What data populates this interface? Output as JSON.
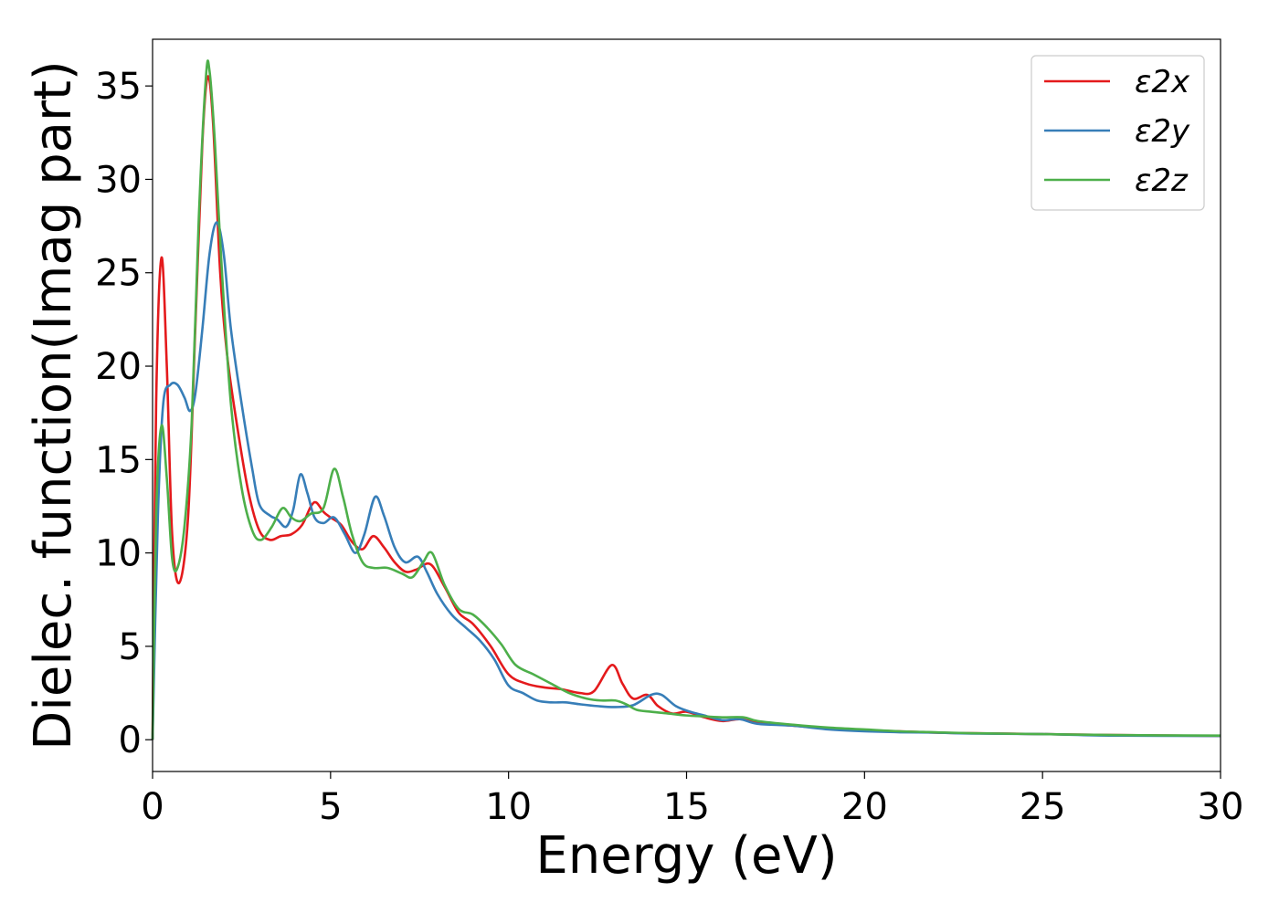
{
  "chart_data": {
    "type": "line",
    "title": "",
    "xlabel": "Energy (eV)",
    "ylabel": "Dielec. function(Imag part)",
    "xlim": [
      0,
      30
    ],
    "ylim": [
      -1.7,
      37.5
    ],
    "xticks": [
      0,
      5,
      10,
      15,
      20,
      25,
      30
    ],
    "yticks": [
      0,
      5,
      10,
      15,
      20,
      25,
      30,
      35
    ],
    "grid": false,
    "legend_position": "top-right",
    "series": [
      {
        "name": "ε2x",
        "color": "#e41a1c",
        "points": [
          [
            0,
            0
          ],
          [
            0.1,
            18
          ],
          [
            0.25,
            25.8
          ],
          [
            0.4,
            20
          ],
          [
            0.55,
            11
          ],
          [
            0.75,
            8.4
          ],
          [
            1.0,
            12
          ],
          [
            1.2,
            22
          ],
          [
            1.4,
            32
          ],
          [
            1.55,
            35.5
          ],
          [
            1.7,
            33
          ],
          [
            1.9,
            25
          ],
          [
            2.1,
            20.5
          ],
          [
            2.4,
            16.5
          ],
          [
            2.7,
            13.2
          ],
          [
            3.0,
            11.2
          ],
          [
            3.3,
            10.7
          ],
          [
            3.6,
            10.9
          ],
          [
            3.9,
            11.0
          ],
          [
            4.2,
            11.5
          ],
          [
            4.45,
            12.5
          ],
          [
            4.6,
            12.7
          ],
          [
            4.8,
            12.2
          ],
          [
            5.0,
            11.9
          ],
          [
            5.3,
            11.5
          ],
          [
            5.6,
            10.6
          ],
          [
            5.9,
            10.2
          ],
          [
            6.2,
            10.9
          ],
          [
            6.5,
            10.3
          ],
          [
            6.8,
            9.5
          ],
          [
            7.1,
            9.0
          ],
          [
            7.4,
            9.1
          ],
          [
            7.8,
            9.4
          ],
          [
            8.2,
            8.2
          ],
          [
            8.6,
            6.8
          ],
          [
            9.0,
            6.2
          ],
          [
            9.5,
            5.0
          ],
          [
            10.0,
            3.5
          ],
          [
            10.5,
            3.0
          ],
          [
            11.0,
            2.8
          ],
          [
            11.5,
            2.7
          ],
          [
            12.0,
            2.5
          ],
          [
            12.4,
            2.6
          ],
          [
            12.9,
            4.0
          ],
          [
            13.2,
            3.0
          ],
          [
            13.5,
            2.2
          ],
          [
            13.9,
            2.4
          ],
          [
            14.2,
            1.8
          ],
          [
            14.6,
            1.4
          ],
          [
            15.0,
            1.5
          ],
          [
            15.5,
            1.2
          ],
          [
            16.0,
            1.0
          ],
          [
            16.5,
            1.1
          ],
          [
            17.0,
            0.9
          ],
          [
            18.0,
            0.75
          ],
          [
            19.0,
            0.6
          ],
          [
            20.0,
            0.5
          ],
          [
            21.0,
            0.45
          ],
          [
            22.0,
            0.38
          ],
          [
            23.0,
            0.35
          ],
          [
            25.0,
            0.3
          ],
          [
            27.0,
            0.25
          ],
          [
            30.0,
            0.2
          ]
        ]
      },
      {
        "name": "ε2y",
        "color": "#377eb8",
        "points": [
          [
            0,
            0
          ],
          [
            0.15,
            12
          ],
          [
            0.3,
            18
          ],
          [
            0.5,
            19
          ],
          [
            0.7,
            19
          ],
          [
            0.9,
            18.3
          ],
          [
            1.05,
            17.6
          ],
          [
            1.2,
            18.5
          ],
          [
            1.4,
            22
          ],
          [
            1.6,
            26
          ],
          [
            1.8,
            27.7
          ],
          [
            2.0,
            26
          ],
          [
            2.2,
            22
          ],
          [
            2.5,
            18
          ],
          [
            2.8,
            14.5
          ],
          [
            3.0,
            12.6
          ],
          [
            3.3,
            12.0
          ],
          [
            3.5,
            11.8
          ],
          [
            3.75,
            11.4
          ],
          [
            3.95,
            12.3
          ],
          [
            4.15,
            14.2
          ],
          [
            4.35,
            13.2
          ],
          [
            4.55,
            11.9
          ],
          [
            4.8,
            11.6
          ],
          [
            5.1,
            11.9
          ],
          [
            5.4,
            11.0
          ],
          [
            5.7,
            10.0
          ],
          [
            5.95,
            11.0
          ],
          [
            6.25,
            13.0
          ],
          [
            6.5,
            12.0
          ],
          [
            6.8,
            10.3
          ],
          [
            7.1,
            9.5
          ],
          [
            7.45,
            9.8
          ],
          [
            7.7,
            9.0
          ],
          [
            8.0,
            7.8
          ],
          [
            8.4,
            6.7
          ],
          [
            8.8,
            6.0
          ],
          [
            9.2,
            5.3
          ],
          [
            9.6,
            4.3
          ],
          [
            10.0,
            2.9
          ],
          [
            10.4,
            2.5
          ],
          [
            10.8,
            2.1
          ],
          [
            11.2,
            2.0
          ],
          [
            11.6,
            2.0
          ],
          [
            12.0,
            1.9
          ],
          [
            12.5,
            1.8
          ],
          [
            13.0,
            1.75
          ],
          [
            13.5,
            1.85
          ],
          [
            14.0,
            2.4
          ],
          [
            14.3,
            2.4
          ],
          [
            14.7,
            1.8
          ],
          [
            15.1,
            1.5
          ],
          [
            15.5,
            1.3
          ],
          [
            16.0,
            1.05
          ],
          [
            16.5,
            1.1
          ],
          [
            17.0,
            0.85
          ],
          [
            18.0,
            0.75
          ],
          [
            19.0,
            0.55
          ],
          [
            20.0,
            0.45
          ],
          [
            21.0,
            0.4
          ],
          [
            22.0,
            0.38
          ],
          [
            23.0,
            0.33
          ],
          [
            25.0,
            0.3
          ],
          [
            27.0,
            0.22
          ],
          [
            30.0,
            0.2
          ]
        ]
      },
      {
        "name": "ε2z",
        "color": "#4daf4a",
        "points": [
          [
            0,
            0
          ],
          [
            0.1,
            12
          ],
          [
            0.25,
            16.8
          ],
          [
            0.4,
            14
          ],
          [
            0.55,
            9.7
          ],
          [
            0.7,
            9.2
          ],
          [
            0.9,
            11.5
          ],
          [
            1.1,
            17
          ],
          [
            1.3,
            28
          ],
          [
            1.5,
            35.5
          ],
          [
            1.6,
            35.8
          ],
          [
            1.75,
            32
          ],
          [
            1.95,
            25
          ],
          [
            2.2,
            18
          ],
          [
            2.5,
            13.5
          ],
          [
            2.8,
            11.2
          ],
          [
            3.05,
            10.7
          ],
          [
            3.35,
            11.4
          ],
          [
            3.65,
            12.4
          ],
          [
            3.9,
            11.9
          ],
          [
            4.15,
            11.7
          ],
          [
            4.45,
            12.1
          ],
          [
            4.8,
            12.4
          ],
          [
            5.1,
            14.5
          ],
          [
            5.35,
            13.0
          ],
          [
            5.6,
            11.0
          ],
          [
            5.9,
            9.5
          ],
          [
            6.2,
            9.2
          ],
          [
            6.6,
            9.2
          ],
          [
            7.0,
            8.9
          ],
          [
            7.3,
            8.7
          ],
          [
            7.6,
            9.5
          ],
          [
            7.85,
            10.0
          ],
          [
            8.2,
            8.3
          ],
          [
            8.6,
            7.0
          ],
          [
            9.0,
            6.7
          ],
          [
            9.4,
            6.0
          ],
          [
            9.8,
            5.1
          ],
          [
            10.2,
            4.0
          ],
          [
            10.7,
            3.5
          ],
          [
            11.2,
            3.0
          ],
          [
            11.7,
            2.5
          ],
          [
            12.2,
            2.2
          ],
          [
            12.6,
            2.1
          ],
          [
            13.0,
            2.1
          ],
          [
            13.3,
            1.9
          ],
          [
            13.6,
            1.6
          ],
          [
            14.0,
            1.5
          ],
          [
            14.5,
            1.4
          ],
          [
            15.0,
            1.3
          ],
          [
            15.5,
            1.25
          ],
          [
            16.0,
            1.2
          ],
          [
            16.6,
            1.2
          ],
          [
            17.0,
            1.0
          ],
          [
            18.0,
            0.8
          ],
          [
            19.0,
            0.65
          ],
          [
            20.0,
            0.55
          ],
          [
            21.0,
            0.45
          ],
          [
            22.0,
            0.4
          ],
          [
            23.0,
            0.35
          ],
          [
            25.0,
            0.3
          ],
          [
            27.0,
            0.25
          ],
          [
            30.0,
            0.22
          ]
        ]
      }
    ]
  }
}
